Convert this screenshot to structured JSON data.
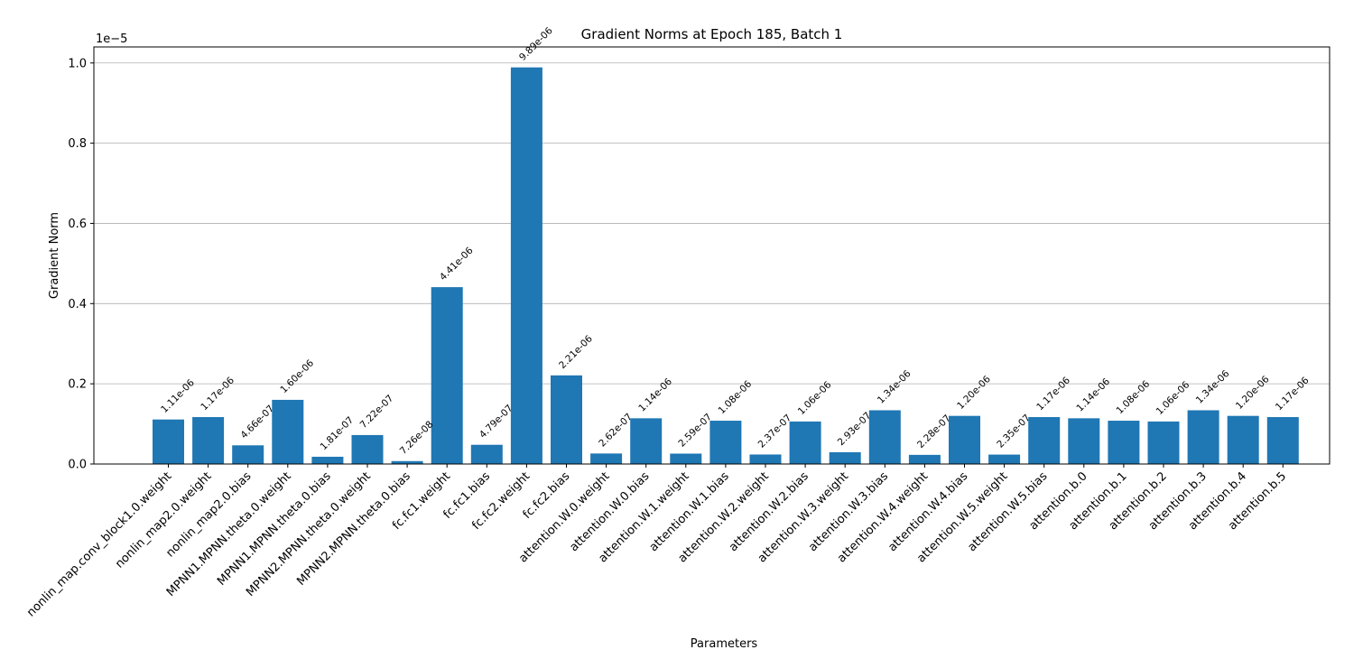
{
  "chart_data": {
    "type": "bar",
    "title": "Gradient Norms at Epoch 185, Batch 1",
    "xlabel": "Parameters",
    "ylabel": "Gradient Norm",
    "y_offset_label": "1e−5",
    "ylim": [
      0,
      1.04
    ],
    "yticks": [
      0.0,
      0.2,
      0.4,
      0.6,
      0.8,
      1.0
    ],
    "ytick_labels": [
      "0.0",
      "0.2",
      "0.4",
      "0.6",
      "0.8",
      "1.0"
    ],
    "grid": "horizontal",
    "bar_color": "#1f77b4",
    "categories": [
      "nonlin_map.conv_block1.0.weight",
      "nonlin_map2.0.weight",
      "nonlin_map2.0.bias",
      "MPNN1.MPNN.theta.0.weight",
      "MPNN1.MPNN.theta.0.bias",
      "MPNN2.MPNN.theta.0.weight",
      "MPNN2.MPNN.theta.0.bias",
      "fc.fc1.weight",
      "fc.fc1.bias",
      "fc.fc2.weight",
      "fc.fc2.bias",
      "attention.W.0.weight",
      "attention.W.0.bias",
      "attention.W.1.weight",
      "attention.W.1.bias",
      "attention.W.2.weight",
      "attention.W.2.bias",
      "attention.W.3.weight",
      "attention.W.3.bias",
      "attention.W.4.weight",
      "attention.W.4.bias",
      "attention.W.5.weight",
      "attention.W.5.bias",
      "attention.b.0",
      "attention.b.1",
      "attention.b.2",
      "attention.b.3",
      "attention.b.4",
      "attention.b.5"
    ],
    "values": [
      0.111,
      0.117,
      0.0466,
      0.16,
      0.0181,
      0.0722,
      0.00726,
      0.441,
      0.0479,
      0.989,
      0.221,
      0.0262,
      0.114,
      0.0259,
      0.108,
      0.0237,
      0.106,
      0.0293,
      0.134,
      0.0228,
      0.12,
      0.0235,
      0.117,
      0.114,
      0.108,
      0.106,
      0.134,
      0.12,
      0.117
    ],
    "data_labels": [
      "1.11e-06",
      "1.17e-06",
      "4.66e-07",
      "1.60e-06",
      "1.81e-07",
      "7.22e-07",
      "7.26e-08",
      "4.41e-06",
      "4.79e-07",
      "9.89e-06",
      "2.21e-06",
      "2.62e-07",
      "1.14e-06",
      "2.59e-07",
      "1.08e-06",
      "2.37e-07",
      "1.06e-06",
      "2.93e-07",
      "1.34e-06",
      "2.28e-07",
      "1.20e-06",
      "2.35e-07",
      "1.17e-06",
      "1.14e-06",
      "1.08e-06",
      "1.06e-06",
      "1.34e-06",
      "1.20e-06",
      "1.17e-06"
    ]
  }
}
